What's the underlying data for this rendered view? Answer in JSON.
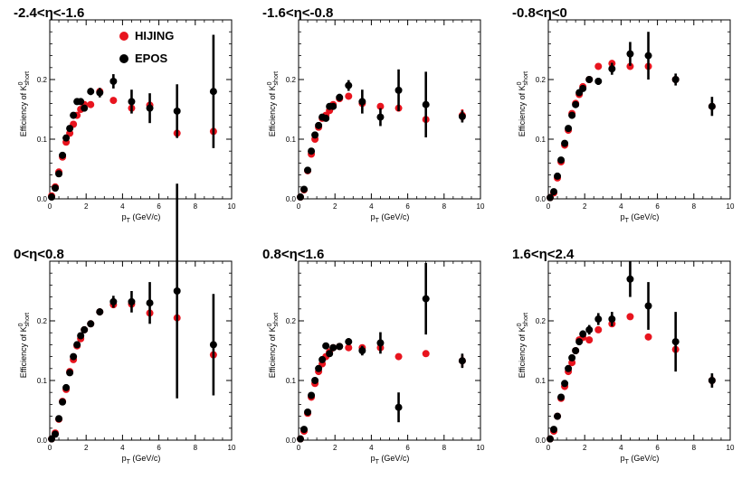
{
  "figure": {
    "panels_label": "Efficiency of K0_S vs pT in pseudorapidity bins"
  },
  "chart_data": [
    {
      "type": "scatter",
      "title": "-2.4<η<-1.6",
      "xlabel": "p_T (GeV/c)",
      "ylabel": "Efficiency of K^0_short",
      "xlim": [
        0,
        10
      ],
      "ylim": [
        0,
        0.3
      ],
      "xticks": [
        "0",
        "2",
        "4",
        "6",
        "8",
        "10"
      ],
      "yticks": [
        "0.0",
        "0.1",
        "0.2"
      ],
      "legend": {
        "position": "top-left",
        "entries": [
          "HIJING",
          "EPOS"
        ]
      },
      "series": [
        {
          "name": "HIJING",
          "color": "#e8141e",
          "x": [
            0.1,
            0.3,
            0.5,
            0.7,
            0.9,
            1.1,
            1.3,
            1.5,
            1.7,
            1.9,
            2.25,
            2.75,
            3.5,
            4.5,
            5.5,
            7.0,
            9.0
          ],
          "y": [
            0.005,
            0.02,
            0.045,
            0.07,
            0.095,
            0.11,
            0.125,
            0.14,
            0.15,
            0.158,
            0.158,
            0.18,
            0.165,
            0.152,
            0.157,
            0.11,
            0.113
          ],
          "err": [
            0,
            0,
            0,
            0,
            0,
            0,
            0,
            0,
            0,
            0,
            0,
            0,
            0,
            0,
            0,
            0,
            0
          ]
        },
        {
          "name": "EPOS",
          "color": "#000000",
          "x": [
            0.1,
            0.3,
            0.5,
            0.7,
            0.9,
            1.1,
            1.3,
            1.5,
            1.7,
            1.9,
            2.25,
            2.75,
            3.5,
            4.5,
            5.5,
            7.0,
            9.0
          ],
          "y": [
            0.003,
            0.018,
            0.042,
            0.073,
            0.102,
            0.118,
            0.14,
            0.163,
            0.163,
            0.152,
            0.18,
            0.178,
            0.197,
            0.163,
            0.152,
            0.147,
            0.18
          ],
          "err": [
            0,
            0,
            0,
            0,
            0,
            0,
            0,
            0,
            0,
            0.005,
            0.006,
            0.008,
            0.012,
            0.02,
            0.025,
            0.045,
            0.095
          ]
        }
      ]
    },
    {
      "type": "scatter",
      "title": "-1.6<η<-0.8",
      "xlabel": "p_T (GeV/c)",
      "ylabel": "Efficiency of K^0_short",
      "xlim": [
        0,
        10
      ],
      "ylim": [
        0,
        0.3
      ],
      "xticks": [
        "0",
        "2",
        "4",
        "6",
        "8",
        "10"
      ],
      "yticks": [
        "0.0",
        "0.1",
        "0.2"
      ],
      "series": [
        {
          "name": "HIJING",
          "color": "#e8141e",
          "x": [
            0.1,
            0.3,
            0.5,
            0.7,
            0.9,
            1.1,
            1.3,
            1.5,
            1.7,
            1.9,
            2.25,
            2.75,
            3.5,
            4.5,
            5.5,
            7.0,
            9.0
          ],
          "y": [
            0.003,
            0.015,
            0.047,
            0.075,
            0.1,
            0.12,
            0.135,
            0.14,
            0.148,
            0.158,
            0.168,
            0.172,
            0.16,
            0.155,
            0.152,
            0.133,
            0.14
          ],
          "err": [
            0,
            0,
            0,
            0,
            0,
            0,
            0,
            0,
            0,
            0,
            0,
            0,
            0,
            0,
            0,
            0,
            0.01
          ]
        },
        {
          "name": "EPOS",
          "color": "#000000",
          "x": [
            0.1,
            0.3,
            0.5,
            0.7,
            0.9,
            1.1,
            1.3,
            1.5,
            1.7,
            1.9,
            2.25,
            2.75,
            3.5,
            4.5,
            5.5,
            7.0,
            9.0
          ],
          "y": [
            0.003,
            0.016,
            0.048,
            0.08,
            0.107,
            0.123,
            0.137,
            0.135,
            0.155,
            0.155,
            0.17,
            0.19,
            0.163,
            0.137,
            0.182,
            0.158,
            0.138
          ],
          "err": [
            0,
            0,
            0,
            0,
            0,
            0,
            0,
            0,
            0,
            0,
            0.006,
            0.009,
            0.02,
            0.015,
            0.035,
            0.055,
            0.01
          ]
        }
      ]
    },
    {
      "type": "scatter",
      "title": "-0.8<η<0",
      "xlabel": "p_T (GeV/c)",
      "ylabel": "Efficiency of K^0_short",
      "xlim": [
        0,
        10
      ],
      "ylim": [
        0,
        0.3
      ],
      "xticks": [
        "0",
        "2",
        "4",
        "6",
        "8",
        "10"
      ],
      "yticks": [
        "0.0",
        "0.1",
        "0.2"
      ],
      "series": [
        {
          "name": "HIJING",
          "color": "#e8141e",
          "x": [
            0.1,
            0.3,
            0.5,
            0.7,
            0.9,
            1.1,
            1.3,
            1.5,
            1.7,
            1.9,
            2.25,
            2.75,
            3.5,
            4.5,
            5.5,
            7.0,
            9.0
          ],
          "y": [
            0.002,
            0.01,
            0.035,
            0.062,
            0.09,
            0.115,
            0.143,
            0.16,
            0.175,
            0.188,
            0.2,
            0.222,
            0.227,
            0.222,
            0.222,
            0.2,
            0.155
          ],
          "err": [
            0,
            0,
            0,
            0,
            0,
            0,
            0,
            0,
            0,
            0,
            0,
            0,
            0,
            0,
            0,
            0,
            0
          ]
        },
        {
          "name": "EPOS",
          "color": "#000000",
          "x": [
            0.1,
            0.3,
            0.5,
            0.7,
            0.9,
            1.1,
            1.3,
            1.5,
            1.7,
            1.9,
            2.25,
            2.75,
            3.5,
            4.5,
            5.5,
            7.0,
            9.0
          ],
          "y": [
            0.002,
            0.012,
            0.038,
            0.065,
            0.093,
            0.118,
            0.14,
            0.158,
            0.178,
            0.185,
            0.2,
            0.197,
            0.218,
            0.243,
            0.24,
            0.2,
            0.155
          ],
          "err": [
            0,
            0,
            0,
            0,
            0,
            0,
            0,
            0,
            0,
            0,
            0.004,
            0.006,
            0.01,
            0.02,
            0.04,
            0.01,
            0.016
          ]
        }
      ]
    },
    {
      "type": "scatter",
      "title": "0<η<0.8",
      "xlabel": "p_T (GeV/c)",
      "ylabel": "Efficiency of K^0_short",
      "xlim": [
        0,
        10
      ],
      "ylim": [
        0,
        0.3
      ],
      "xticks": [
        "0",
        "2",
        "4",
        "6",
        "8",
        "10"
      ],
      "yticks": [
        "0.0",
        "0.1",
        "0.2"
      ],
      "series": [
        {
          "name": "HIJING",
          "color": "#e8141e",
          "x": [
            0.1,
            0.3,
            0.5,
            0.7,
            0.9,
            1.1,
            1.3,
            1.5,
            1.7,
            1.9,
            2.25,
            2.75,
            3.5,
            4.5,
            5.5,
            7.0,
            9.0
          ],
          "y": [
            0.002,
            0.012,
            0.035,
            0.065,
            0.085,
            0.115,
            0.135,
            0.158,
            0.17,
            0.185,
            0.195,
            0.215,
            0.227,
            0.228,
            0.213,
            0.205,
            0.143
          ],
          "err": [
            0,
            0,
            0,
            0,
            0,
            0,
            0,
            0,
            0,
            0,
            0,
            0,
            0,
            0,
            0,
            0,
            0
          ]
        },
        {
          "name": "EPOS",
          "color": "#000000",
          "x": [
            0.1,
            0.3,
            0.5,
            0.7,
            0.9,
            1.1,
            1.3,
            1.5,
            1.7,
            1.9,
            2.25,
            2.75,
            3.5,
            4.5,
            5.5,
            7.0,
            9.0
          ],
          "y": [
            0.002,
            0.01,
            0.036,
            0.064,
            0.088,
            0.113,
            0.14,
            0.16,
            0.175,
            0.185,
            0.195,
            0.215,
            0.232,
            0.232,
            0.23,
            0.25,
            0.16
          ],
          "err": [
            0,
            0,
            0,
            0,
            0,
            0,
            0,
            0,
            0,
            0,
            0.004,
            0.006,
            0.01,
            0.018,
            0.035,
            0.18,
            0.085
          ]
        }
      ]
    },
    {
      "type": "scatter",
      "title": "0.8<η<1.6",
      "xlabel": "p_T (GeV/c)",
      "ylabel": "Efficiency of K^0_short",
      "xlim": [
        0,
        10
      ],
      "ylim": [
        0,
        0.3
      ],
      "xticks": [
        "0",
        "2",
        "4",
        "6",
        "8",
        "10"
      ],
      "yticks": [
        "0.0",
        "0.1",
        "0.2"
      ],
      "series": [
        {
          "name": "HIJING",
          "color": "#e8141e",
          "x": [
            0.1,
            0.3,
            0.5,
            0.7,
            0.9,
            1.1,
            1.3,
            1.5,
            1.7,
            1.9,
            2.25,
            2.75,
            3.5,
            4.5,
            5.5,
            7.0,
            9.0
          ],
          "y": [
            0.002,
            0.015,
            0.045,
            0.072,
            0.095,
            0.115,
            0.128,
            0.14,
            0.148,
            0.155,
            0.157,
            0.155,
            0.155,
            0.155,
            0.14,
            0.145,
            0.133
          ],
          "err": [
            0,
            0,
            0,
            0,
            0,
            0,
            0,
            0,
            0,
            0,
            0,
            0,
            0,
            0,
            0,
            0.005,
            0.01
          ]
        },
        {
          "name": "EPOS",
          "color": "#000000",
          "x": [
            0.1,
            0.3,
            0.5,
            0.7,
            0.9,
            1.1,
            1.3,
            1.5,
            1.7,
            1.9,
            2.25,
            2.75,
            3.5,
            4.5,
            5.5,
            7.0,
            9.0
          ],
          "y": [
            0.002,
            0.018,
            0.047,
            0.075,
            0.1,
            0.12,
            0.135,
            0.158,
            0.145,
            0.155,
            0.157,
            0.165,
            0.15,
            0.163,
            0.055,
            0.237,
            0.133
          ],
          "err": [
            0,
            0,
            0,
            0,
            0,
            0,
            0,
            0,
            0,
            0,
            0.004,
            0.006,
            0.008,
            0.018,
            0.025,
            0.06,
            0.012
          ]
        }
      ]
    },
    {
      "type": "scatter",
      "title": "1.6<η<2.4",
      "xlabel": "p_T (GeV/c)",
      "ylabel": "Efficiency of K^0_short",
      "xlim": [
        0,
        10
      ],
      "ylim": [
        0,
        0.3
      ],
      "xticks": [
        "0",
        "2",
        "4",
        "6",
        "8",
        "10"
      ],
      "yticks": [
        "0.0",
        "0.1",
        "0.2"
      ],
      "series": [
        {
          "name": "HIJING",
          "color": "#e8141e",
          "x": [
            0.1,
            0.3,
            0.5,
            0.7,
            0.9,
            1.1,
            1.3,
            1.5,
            1.7,
            1.9,
            2.25,
            2.75,
            3.5,
            4.5,
            5.5,
            7.0,
            9.0
          ],
          "y": [
            0.002,
            0.015,
            0.04,
            0.07,
            0.09,
            0.115,
            0.13,
            0.15,
            0.168,
            0.172,
            0.168,
            0.185,
            0.195,
            0.207,
            0.173,
            0.152,
            0.1
          ],
          "err": [
            0,
            0,
            0,
            0,
            0,
            0,
            0,
            0,
            0,
            0,
            0,
            0,
            0,
            0,
            0,
            0.006,
            0.008
          ]
        },
        {
          "name": "EPOS",
          "color": "#000000",
          "x": [
            0.1,
            0.3,
            0.5,
            0.7,
            0.9,
            1.1,
            1.3,
            1.5,
            1.7,
            1.9,
            2.25,
            2.75,
            3.5,
            4.5,
            5.5,
            7.0,
            9.0
          ],
          "y": [
            0.002,
            0.018,
            0.04,
            0.072,
            0.095,
            0.12,
            0.138,
            0.15,
            0.165,
            0.178,
            0.185,
            0.203,
            0.203,
            0.27,
            0.225,
            0.165,
            0.1
          ],
          "err": [
            0,
            0,
            0,
            0,
            0,
            0,
            0,
            0,
            0,
            0.006,
            0.008,
            0.01,
            0.012,
            0.03,
            0.04,
            0.05,
            0.012
          ]
        }
      ]
    }
  ]
}
